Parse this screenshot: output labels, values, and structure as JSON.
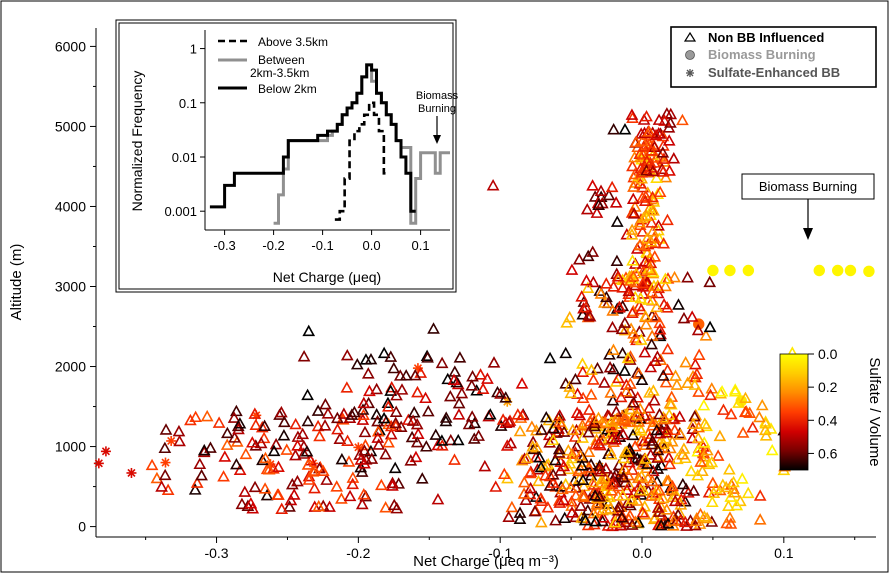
{
  "chart_data": {
    "type": "scatter",
    "xlabel": "Net Charge (μeq m⁻³)",
    "ylabel": "Altitude (m)",
    "xlim": [
      -0.385,
      0.165
    ],
    "ylim": [
      -130,
      6230
    ],
    "x_ticks": [
      -0.3,
      -0.2,
      -0.1,
      0.0,
      0.1
    ],
    "x_tick_labels": [
      "-0.3",
      "-0.2",
      "-0.1",
      "0.0",
      "0.1"
    ],
    "y_ticks": [
      0,
      1000,
      2000,
      3000,
      4000,
      5000,
      6000
    ],
    "y_tick_labels": [
      "0",
      "1000",
      "2000",
      "3000",
      "4000",
      "5000",
      "6000"
    ],
    "legend_position": "top-right",
    "legend": [
      {
        "label": "Non BB Influenced",
        "marker": "triangle",
        "color": "#000000"
      },
      {
        "label": "Biomass Burning",
        "marker": "circle",
        "color": "#9a9a9a"
      },
      {
        "label": "Sulfate-Enhanced BB",
        "marker": "asterisk",
        "color": "#555555"
      }
    ],
    "annotation": {
      "text": "Biomass Burning",
      "points_to": [
        0.125,
        3200
      ]
    },
    "colorbar": {
      "label": "Sulfate / Volume",
      "range": [
        0.0,
        0.7
      ],
      "ticks": [
        0.0,
        0.2,
        0.4,
        0.6
      ],
      "tick_labels": [
        "0.0",
        "0.2",
        "0.4",
        "0.6"
      ],
      "colormap": [
        "#ffff00",
        "#ffcc00",
        "#ff8c00",
        "#ff3d00",
        "#d10000",
        "#7a0000",
        "#000000"
      ]
    },
    "series": [
      {
        "name": "Biomass Burning",
        "marker": "circle",
        "points": [
          [
            0.05,
            3200
          ],
          [
            0.062,
            3200
          ],
          [
            0.075,
            3200
          ],
          [
            0.125,
            3200
          ],
          [
            0.138,
            3200
          ],
          [
            0.147,
            3200
          ],
          [
            0.16,
            3190
          ],
          [
            0.04,
            2530
          ],
          [
            0.07,
            1570
          ]
        ],
        "sulfate": [
          0.02,
          0.02,
          0.02,
          0.02,
          0.02,
          0.02,
          0.02,
          0.3,
          0.05
        ]
      },
      {
        "name": "Sulfate-Enhanced BB",
        "marker": "asterisk",
        "points": [
          [
            -0.383,
            790
          ],
          [
            -0.378,
            940
          ],
          [
            -0.36,
            670
          ],
          [
            -0.332,
            1070
          ],
          [
            -0.336,
            800
          ],
          [
            -0.272,
            1390
          ],
          [
            -0.262,
            780
          ],
          [
            -0.232,
            790
          ],
          [
            -0.2,
            990
          ],
          [
            -0.158,
            1980
          ],
          [
            -0.095,
            1560
          ],
          [
            -0.058,
            1340
          ],
          [
            -0.042,
            1230
          ],
          [
            -0.012,
            1410
          ],
          [
            0.008,
            1310
          ],
          [
            0.018,
            1180
          ],
          [
            -0.03,
            750
          ]
        ],
        "sulfate": [
          0.45,
          0.45,
          0.45,
          0.35,
          0.35,
          0.35,
          0.35,
          0.35,
          0.35,
          0.35,
          0.2,
          0.2,
          0.2,
          0.2,
          0.2,
          0.2,
          0.25
        ]
      },
      {
        "name": "Non BB Influenced",
        "marker": "triangle",
        "clusters": [
          {
            "count": 160,
            "x": [
              -0.36,
              -0.1
            ],
            "y": [
              200,
              1450
            ],
            "sulfate": [
              0.3,
              0.7
            ]
          },
          {
            "count": 90,
            "x": [
              -0.25,
              -0.05
            ],
            "y": [
              1000,
              2200
            ],
            "sulfate": [
              0.4,
              0.75
            ]
          },
          {
            "count": 420,
            "x": [
              -0.1,
              0.06
            ],
            "y": [
              0,
              1400
            ],
            "sulfate": [
              0.1,
              0.7
            ]
          },
          {
            "count": 150,
            "x": [
              -0.06,
              0.05
            ],
            "y": [
              1300,
              3200
            ],
            "sulfate": [
              0.1,
              0.7
            ]
          },
          {
            "count": 110,
            "x": [
              -0.015,
              0.02
            ],
            "y": [
              2800,
              4800
            ],
            "sulfate": [
              0.05,
              0.5
            ]
          },
          {
            "count": 50,
            "x": [
              -0.01,
              0.03
            ],
            "y": [
              4400,
              5200
            ],
            "sulfate": [
              0.3,
              0.6
            ]
          },
          {
            "count": 70,
            "x": [
              0.02,
              0.11
            ],
            "y": [
              0,
              1800
            ],
            "sulfate": [
              0.0,
              0.4
            ]
          },
          {
            "count": 30,
            "x": [
              -0.06,
              0.0
            ],
            "y": [
              2500,
              4300
            ],
            "sulfate": [
              0.4,
              0.7
            ]
          }
        ],
        "extra_points": [
          [
            -0.235,
            2440
          ],
          [
            -0.147,
            2470
          ],
          [
            -0.105,
            4260
          ],
          [
            -0.02,
            4960
          ],
          [
            -0.012,
            4960
          ],
          [
            0.1,
            1200
          ],
          [
            0.106,
            2170
          ],
          [
            0.048,
            2490
          ]
        ],
        "extra_sulfate": [
          0.75,
          0.65,
          0.5,
          0.65,
          0.7,
          0.65,
          0.05,
          0.75
        ]
      }
    ],
    "inset": {
      "type": "line",
      "xlabel": "Net Charge (μeq)",
      "ylabel": "Normalized Frequency",
      "x_ticks": [
        -0.3,
        -0.2,
        -0.1,
        0.0,
        0.1
      ],
      "x_tick_labels": [
        "-0.3",
        "-0.2",
        "-0.1",
        "0.0",
        "0.1"
      ],
      "y_scale": "log",
      "y_ticks": [
        0.001,
        0.01,
        0.1,
        1
      ],
      "y_tick_labels": [
        "0.001",
        "0.01",
        "0.1",
        "1"
      ],
      "xlim": [
        -0.34,
        0.16
      ],
      "ylim": [
        0.00045,
        2.2
      ],
      "legend": [
        {
          "label_lines": [
            "Above 3.5km"
          ],
          "style": "dashed",
          "color": "#000000"
        },
        {
          "label_lines": [
            "Between",
            "2km-3.5km"
          ],
          "style": "solid",
          "color": "#909090"
        },
        {
          "label_lines": [
            "Below 2km"
          ],
          "style": "solid",
          "color": "#000000"
        }
      ],
      "annotation": {
        "text_lines": [
          "Biomass",
          "Burning"
        ],
        "points_to": [
          0.14,
          0.012
        ]
      },
      "series": [
        {
          "name": "Above 3.5km",
          "style": "dashed",
          "color": "#000000",
          "x": [
            -0.075,
            -0.065,
            -0.055,
            -0.045,
            -0.035,
            -0.025,
            -0.015,
            -0.005,
            0.005,
            0.015,
            0.025
          ],
          "y": [
            0.0007,
            0.001,
            0.004,
            0.02,
            0.03,
            0.04,
            0.06,
            0.1,
            0.06,
            0.03,
            0.005
          ]
        },
        {
          "name": "Between 2km-3.5km",
          "style": "solid",
          "color": "#909090",
          "x": [
            -0.2,
            -0.19,
            -0.18,
            -0.17,
            -0.16,
            -0.15,
            -0.14,
            -0.13,
            -0.12,
            -0.11,
            -0.1,
            -0.09,
            -0.08,
            -0.07,
            -0.06,
            -0.05,
            -0.04,
            -0.03,
            -0.02,
            -0.01,
            0.0,
            0.01,
            0.02,
            0.03,
            0.04,
            0.05,
            0.06,
            0.07,
            0.08,
            0.09,
            0.1,
            0.11,
            0.12,
            0.13,
            0.14,
            0.15
          ],
          "y": [
            0.0006,
            0.002,
            0.006,
            0.02,
            0.02,
            0.02,
            0.02,
            0.02,
            0.02,
            0.02,
            0.02,
            0.025,
            0.03,
            0.04,
            0.06,
            0.08,
            0.1,
            0.15,
            0.3,
            0.5,
            0.25,
            0.15,
            0.1,
            0.06,
            0.04,
            0.02,
            0.015,
            0.015,
            0.0006,
            0.004,
            0.012,
            0.012,
            0.012,
            0.005,
            0.012,
            0.012
          ]
        },
        {
          "name": "Below 2km",
          "style": "solid",
          "color": "#000000",
          "x": [
            -0.33,
            -0.31,
            -0.3,
            -0.29,
            -0.28,
            -0.27,
            -0.26,
            -0.25,
            -0.24,
            -0.23,
            -0.22,
            -0.21,
            -0.2,
            -0.19,
            -0.18,
            -0.17,
            -0.16,
            -0.15,
            -0.14,
            -0.13,
            -0.12,
            -0.11,
            -0.1,
            -0.09,
            -0.08,
            -0.07,
            -0.06,
            -0.05,
            -0.04,
            -0.03,
            -0.02,
            -0.01,
            0.0,
            0.01,
            0.02,
            0.03,
            0.04,
            0.05,
            0.06,
            0.07,
            0.08
          ],
          "y": [
            0.0012,
            0.0012,
            0.003,
            0.003,
            0.005,
            0.005,
            0.005,
            0.005,
            0.005,
            0.005,
            0.005,
            0.005,
            0.005,
            0.005,
            0.01,
            0.02,
            0.02,
            0.02,
            0.02,
            0.02,
            0.02,
            0.025,
            0.025,
            0.03,
            0.03,
            0.04,
            0.06,
            0.08,
            0.1,
            0.15,
            0.3,
            0.5,
            0.4,
            0.15,
            0.1,
            0.06,
            0.04,
            0.02,
            0.01,
            0.005,
            0.001
          ]
        }
      ]
    }
  }
}
